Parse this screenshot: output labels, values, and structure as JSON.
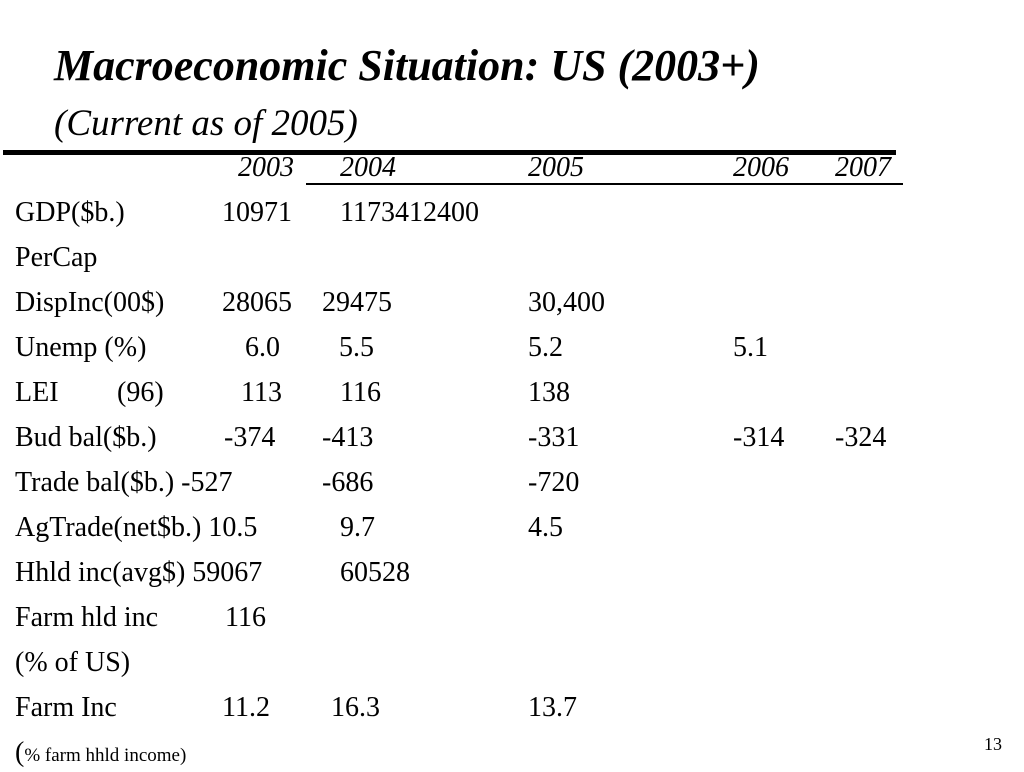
{
  "slide": {
    "title": "Macroeconomic Situation: US (2003+)",
    "subtitle": "(Current as of 2005)",
    "page_number": "13"
  },
  "years": [
    "2003",
    "2004",
    "2005",
    "2006",
    "2007"
  ],
  "rows": {
    "gdp": {
      "label": "GDP($b.)",
      "v2003": "10971",
      "v2004": "1173412400"
    },
    "percap": {
      "label": "PerCap"
    },
    "dispinc": {
      "label": "DispInc(00$)",
      "v2003": "28065",
      "v2004": "29475",
      "v2005": "30,400"
    },
    "unemp": {
      "label": "Unemp (%)",
      "v2003": "6.0",
      "v2004": "5.5",
      "v2005": "5.2",
      "v2006": "5.1"
    },
    "lei": {
      "label": "LEI",
      "label2": "(96)",
      "v2003": "113",
      "v2004": "116",
      "v2005": "138"
    },
    "budbal": {
      "label": "Bud bal($b.)",
      "v2003": "-374",
      "v2004": "-413",
      "v2005": "-331",
      "v2006": "-314",
      "v2007": "-324"
    },
    "tradebal": {
      "label": "Trade bal($b.) -527",
      "v2004": "-686",
      "v2005": "-720"
    },
    "agtrade": {
      "label": "AgTrade(net$b.) 10.5",
      "v2004": "9.7",
      "v2005": "4.5"
    },
    "hhldinc": {
      "label": "Hhld inc(avg$) 59067",
      "v2004": "60528"
    },
    "farmhld": {
      "label": "Farm hld inc",
      "v2003": "116"
    },
    "pctus": {
      "label": "(% of US)"
    },
    "farminc": {
      "label": "Farm Inc",
      "v2003": "11.2",
      "v2004": "16.3",
      "v2005": "13.7"
    },
    "farmnote": {
      "open": "(",
      "text": "% farm hhld income)"
    }
  }
}
